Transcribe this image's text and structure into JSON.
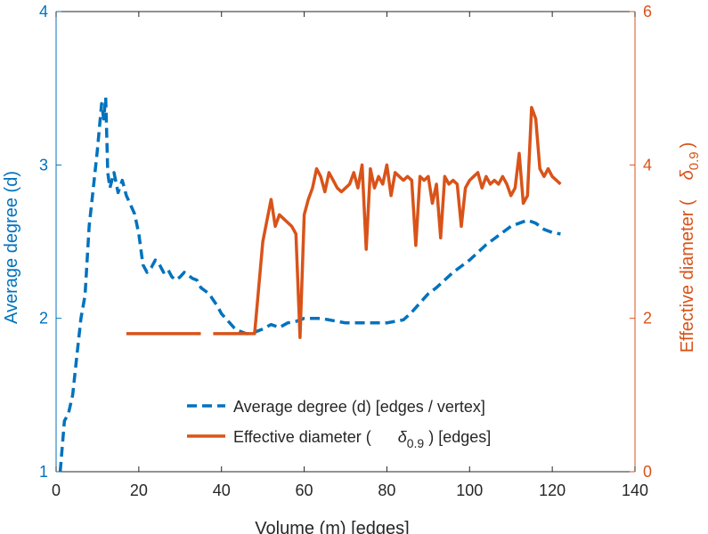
{
  "chart_data": {
    "type": "line",
    "xlabel": "Volume (m) [edges]",
    "ylabel_left": "Average degree (d)",
    "ylabel_right_main": "Effective diameter (",
    "ylabel_right_sym": "δ",
    "ylabel_right_sub": "0.9",
    "ylabel_right_close": ")",
    "xlim": [
      0,
      140
    ],
    "ylim_left": [
      1,
      4
    ],
    "ylim_right": [
      0,
      6
    ],
    "xticks": [
      "0",
      "20",
      "40",
      "60",
      "80",
      "100",
      "120",
      "140"
    ],
    "yticks_left": [
      "1",
      "2",
      "3",
      "4"
    ],
    "yticks_right": [
      "0",
      "2",
      "4",
      "6"
    ],
    "legend_position": "lower-right",
    "colors": {
      "left_axis": "#0072BD",
      "right_axis": "#D95319",
      "axes": "#262626"
    },
    "series": [
      {
        "name": "Average degree (d) [edges / vertex]",
        "axis": "left",
        "style": "dashed",
        "color": "#0072BD",
        "x": [
          1,
          2,
          3,
          4,
          5,
          6,
          7,
          8,
          9,
          10,
          11,
          11.5,
          12,
          12.5,
          13,
          14,
          15,
          16,
          17,
          18,
          19,
          20,
          21,
          22,
          23,
          24,
          25,
          26,
          27,
          28,
          29,
          30,
          31,
          32,
          33,
          34,
          35,
          36,
          37,
          38,
          39,
          40,
          41,
          42,
          43,
          44,
          45,
          46,
          47,
          48,
          50,
          52,
          54,
          56,
          58,
          60,
          62,
          64,
          66,
          68,
          70,
          72,
          74,
          76,
          78,
          80,
          82,
          84,
          86,
          88,
          90,
          92,
          94,
          96,
          98,
          100,
          102,
          104,
          106,
          108,
          110,
          112,
          114,
          116,
          118,
          120,
          122
        ],
        "y": [
          1.0,
          1.33,
          1.38,
          1.5,
          1.75,
          2.0,
          2.15,
          2.6,
          2.85,
          3.1,
          3.4,
          3.3,
          3.44,
          2.95,
          2.85,
          2.95,
          2.82,
          2.9,
          2.8,
          2.74,
          2.68,
          2.55,
          2.35,
          2.3,
          2.33,
          2.38,
          2.35,
          2.3,
          2.32,
          2.27,
          2.25,
          2.27,
          2.3,
          2.28,
          2.26,
          2.25,
          2.2,
          2.18,
          2.16,
          2.12,
          2.08,
          2.03,
          2.0,
          1.97,
          1.94,
          1.92,
          1.91,
          1.9,
          1.9,
          1.91,
          1.93,
          1.96,
          1.94,
          1.97,
          1.98,
          2.0,
          2.0,
          2.0,
          1.99,
          1.98,
          1.97,
          1.97,
          1.97,
          1.97,
          1.97,
          1.97,
          1.98,
          1.99,
          2.04,
          2.1,
          2.16,
          2.2,
          2.25,
          2.3,
          2.34,
          2.38,
          2.43,
          2.48,
          2.52,
          2.56,
          2.6,
          2.62,
          2.64,
          2.62,
          2.58,
          2.56,
          2.55
        ]
      },
      {
        "name": "Effective diameter ( δ0.9 ) [edges]",
        "legend_main": "Effective diameter (",
        "legend_sym": "δ",
        "legend_sub": "0.9",
        "legend_tail": ") [edges]",
        "axis": "right",
        "style": "solid",
        "color": "#D95319",
        "segments": [
          {
            "x": [
              17,
              35
            ],
            "y": [
              1.8,
              1.8
            ]
          },
          {
            "x": [
              38,
              48,
              50,
              52,
              53,
              54,
              55,
              56,
              57,
              58,
              59,
              60,
              61,
              62,
              63,
              64,
              65,
              66,
              67,
              68,
              69,
              70,
              71,
              72,
              73,
              74,
              75,
              76,
              77,
              78,
              79,
              80,
              81,
              82,
              83,
              84,
              85,
              86,
              87,
              88,
              89,
              90,
              91,
              92,
              93,
              94,
              95,
              96,
              97,
              98,
              99,
              100,
              101,
              102,
              103,
              104,
              105,
              106,
              107,
              108,
              109,
              110,
              111,
              112,
              113,
              114,
              115,
              116,
              117,
              118,
              119,
              120,
              121,
              122
            ],
            "y": [
              1.8,
              1.8,
              3.0,
              3.55,
              3.2,
              3.35,
              3.3,
              3.25,
              3.2,
              3.1,
              1.75,
              3.35,
              3.55,
              3.7,
              3.95,
              3.85,
              3.65,
              3.9,
              3.8,
              3.7,
              3.65,
              3.7,
              3.75,
              3.9,
              3.7,
              4.0,
              2.9,
              3.95,
              3.7,
              3.85,
              3.75,
              4.0,
              3.6,
              3.9,
              3.85,
              3.8,
              3.85,
              3.8,
              2.95,
              3.85,
              3.8,
              3.85,
              3.5,
              3.75,
              3.05,
              3.85,
              3.75,
              3.8,
              3.75,
              3.2,
              3.7,
              3.8,
              3.85,
              3.9,
              3.7,
              3.85,
              3.75,
              3.8,
              3.75,
              3.85,
              3.75,
              3.6,
              3.7,
              4.15,
              3.5,
              3.6,
              4.75,
              4.6,
              3.95,
              3.85,
              3.95,
              3.85,
              3.8,
              3.75
            ]
          }
        ]
      }
    ]
  }
}
